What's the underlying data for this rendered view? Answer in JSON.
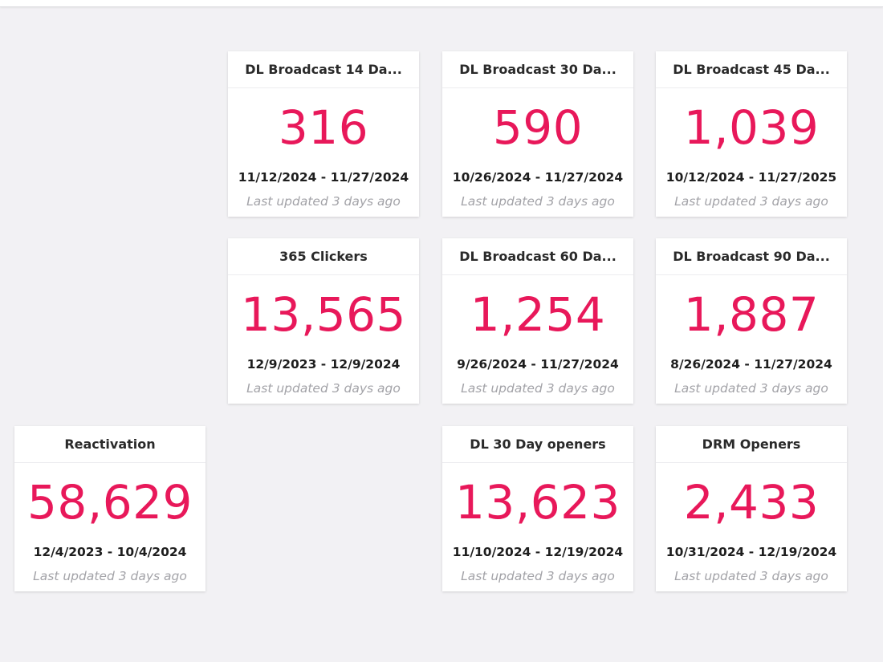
{
  "cards": [
    {
      "title": "DL Broadcast 14 Da...",
      "value": "316",
      "range": "11/12/2024 - 11/27/2024",
      "updated": "Last updated 3 days ago"
    },
    {
      "title": "DL Broadcast 30 Da...",
      "value": "590",
      "range": "10/26/2024 - 11/27/2024",
      "updated": "Last updated 3 days ago"
    },
    {
      "title": "DL Broadcast 45 Da...",
      "value": "1,039",
      "range": "10/12/2024 - 11/27/2025",
      "updated": "Last updated 3 days ago"
    },
    {
      "title": "365 Clickers",
      "value": "13,565",
      "range": "12/9/2023 - 12/9/2024",
      "updated": "Last updated 3 days ago"
    },
    {
      "title": "DL Broadcast 60 Da...",
      "value": "1,254",
      "range": "9/26/2024 - 11/27/2024",
      "updated": "Last updated 3 days ago"
    },
    {
      "title": "DL Broadcast 90 Da...",
      "value": "1,887",
      "range": "8/26/2024 - 11/27/2024",
      "updated": "Last updated 3 days ago"
    },
    {
      "title": "Reactivation",
      "value": "58,629",
      "range": "12/4/2023 - 10/4/2024",
      "updated": "Last updated 3 days ago"
    },
    {
      "title": "DL 30 Day openers",
      "value": "13,623",
      "range": "11/10/2024 - 12/19/2024",
      "updated": "Last updated 3 days ago"
    },
    {
      "title": "DRM Openers",
      "value": "2,433",
      "range": "10/31/2024 - 12/19/2024",
      "updated": "Last updated 3 days ago"
    }
  ],
  "colors": {
    "value": "#e8185a",
    "background": "#f2f1f4",
    "card": "#ffffff",
    "updated_text": "#a3a3a8"
  }
}
